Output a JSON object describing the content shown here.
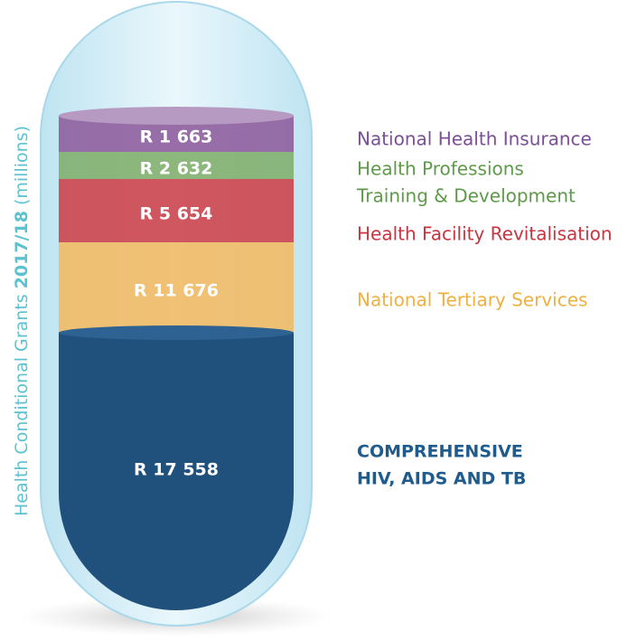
{
  "title": {
    "lead": "Health Conditional Grants ",
    "year": "2017/18",
    "unit": " (millions)"
  },
  "segments": [
    {
      "label": "R 1 663",
      "name": [
        "National Health Insurance"
      ]
    },
    {
      "label": "R 2 632",
      "name": [
        "Health Professions",
        "Training & Development"
      ]
    },
    {
      "label": "R 5 654",
      "name": [
        "Health Facility Revitalisation"
      ]
    },
    {
      "label": "R 11 676",
      "name": [
        "National Tertiary Services"
      ]
    },
    {
      "label": "R 17 558",
      "name": [
        "COMPREHENSIVE",
        "HIV, AIDS AND TB"
      ]
    }
  ]
}
